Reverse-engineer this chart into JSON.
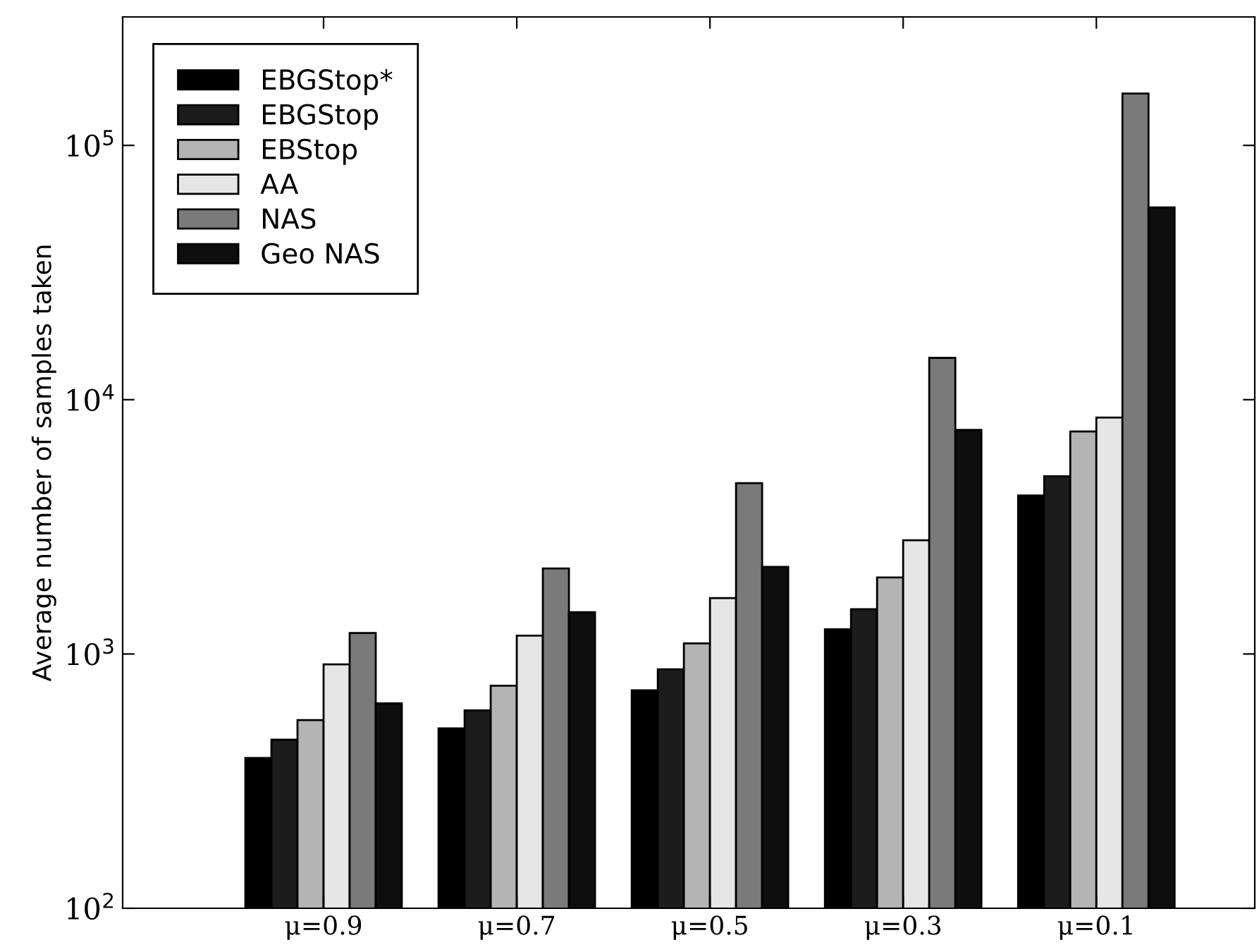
{
  "chart_data": {
    "type": "bar",
    "ylabel": "Average number of samples taken",
    "categories": [
      "μ=0.9",
      "μ=0.7",
      "μ=0.5",
      "μ=0.3",
      "μ=0.1"
    ],
    "series": [
      {
        "name": "EBGStop*",
        "color": "#000000",
        "values": [
          390,
          510,
          720,
          1250,
          4200
        ]
      },
      {
        "name": "EBGStop",
        "color": "#1c1c1c",
        "values": [
          460,
          600,
          870,
          1500,
          5000
        ]
      },
      {
        "name": "EBStop",
        "color": "#b4b4b4",
        "values": [
          550,
          750,
          1100,
          2000,
          7500
        ]
      },
      {
        "name": "AA",
        "color": "#e6e6e6",
        "values": [
          910,
          1180,
          1660,
          2800,
          8500
        ]
      },
      {
        "name": "NAS",
        "color": "#7a7a7a",
        "values": [
          1210,
          2170,
          4700,
          14600,
          160000
        ]
      },
      {
        "name": "Geo NAS",
        "color": "#0e0e0e",
        "values": [
          640,
          1460,
          2200,
          7600,
          57000
        ]
      }
    ],
    "log": true,
    "ylim": [
      100,
      320000
    ],
    "yticks": [
      {
        "value": 100,
        "label": "10$^{2}$"
      },
      {
        "value": 1000,
        "label": "10$^{3}$"
      },
      {
        "value": 10000,
        "label": "10$^{4}$"
      },
      {
        "value": 100000,
        "label": "10$^{5}$"
      }
    ],
    "legend": "top left",
    "grid": false
  }
}
